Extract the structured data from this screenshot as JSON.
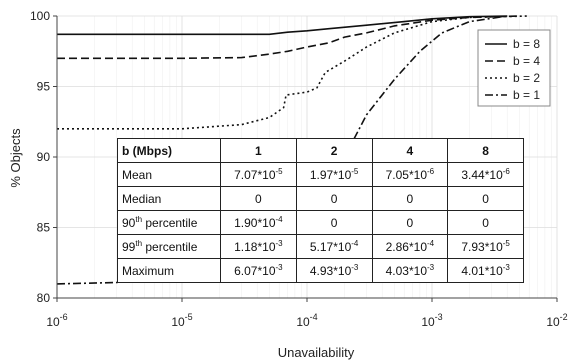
{
  "chart_data": {
    "type": "line",
    "xlabel": "Unavailability",
    "ylabel": "% Objects",
    "xscale": "log",
    "xlim": [
      1e-06,
      0.01
    ],
    "ylim": [
      80,
      100
    ],
    "grid": true,
    "x_ticks": [
      {
        "base": "10",
        "exp": "-6"
      },
      {
        "base": "10",
        "exp": "-5"
      },
      {
        "base": "10",
        "exp": "-4"
      },
      {
        "base": "10",
        "exp": "-3"
      },
      {
        "base": "10",
        "exp": "-2"
      }
    ],
    "y_ticks": [
      "80",
      "85",
      "90",
      "95",
      "100"
    ],
    "legend_position": "top-right",
    "series": [
      {
        "name": "b = 8",
        "dash": "solid",
        "points": [
          [
            1e-06,
            98.7
          ],
          [
            3e-06,
            98.7
          ],
          [
            1e-05,
            98.7
          ],
          [
            5e-05,
            98.7
          ],
          [
            7e-05,
            98.85
          ],
          [
            0.0001,
            98.95
          ],
          [
            0.00015,
            99.1
          ],
          [
            0.0003,
            99.35
          ],
          [
            0.0006,
            99.6
          ],
          [
            0.001,
            99.8
          ],
          [
            0.002,
            99.95
          ],
          [
            0.004,
            100
          ]
        ]
      },
      {
        "name": "b = 4",
        "dash": "dashed",
        "points": [
          [
            1e-06,
            97.0
          ],
          [
            1e-05,
            97.0
          ],
          [
            3e-05,
            97.05
          ],
          [
            5e-05,
            97.3
          ],
          [
            7e-05,
            97.5
          ],
          [
            0.0001,
            97.8
          ],
          [
            0.00015,
            98.1
          ],
          [
            0.0002,
            98.5
          ],
          [
            0.0003,
            98.8
          ],
          [
            0.0005,
            99.3
          ],
          [
            0.001,
            99.7
          ],
          [
            0.002,
            99.9
          ],
          [
            0.005,
            100
          ]
        ]
      },
      {
        "name": "b = 2",
        "dash": "dotted",
        "points": [
          [
            1e-06,
            92.0
          ],
          [
            1e-05,
            92.0
          ],
          [
            3e-05,
            92.3
          ],
          [
            5e-05,
            92.8
          ],
          [
            6.5e-05,
            93.5
          ],
          [
            6.8e-05,
            94.4
          ],
          [
            0.0001,
            94.6
          ],
          [
            0.00012,
            94.9
          ],
          [
            0.00014,
            96.0
          ],
          [
            0.0002,
            96.8
          ],
          [
            0.0003,
            97.8
          ],
          [
            0.0005,
            98.8
          ],
          [
            0.001,
            99.6
          ],
          [
            0.002,
            99.9
          ],
          [
            0.006,
            100
          ]
        ]
      },
      {
        "name": "b = 1",
        "dash": "dashdot",
        "points": [
          [
            1e-06,
            81.0
          ],
          [
            3e-06,
            81.1
          ],
          [
            1e-05,
            81.5
          ],
          [
            3e-05,
            82.0
          ],
          [
            5e-05,
            82.5
          ],
          [
            8e-05,
            83.5
          ],
          [
            0.0001,
            84.8
          ],
          [
            0.00015,
            87.5
          ],
          [
            0.0002,
            90.0
          ],
          [
            0.0003,
            93.0
          ],
          [
            0.0005,
            95.5
          ],
          [
            0.0008,
            97.5
          ],
          [
            0.0012,
            98.8
          ],
          [
            0.002,
            99.6
          ],
          [
            0.004,
            100
          ]
        ]
      }
    ],
    "table": {
      "header": [
        "b (Mbps)",
        "1",
        "2",
        "4",
        "8"
      ],
      "rows": [
        {
          "label": "Mean",
          "label_sup": "",
          "label_suffix": "",
          "cells": [
            {
              "m": "7.07*10",
              "e": "-5"
            },
            {
              "m": "1.97*10",
              "e": "-5"
            },
            {
              "m": "7.05*10",
              "e": "-6"
            },
            {
              "m": "3.44*10",
              "e": "-6"
            }
          ]
        },
        {
          "label": "Median",
          "label_sup": "",
          "label_suffix": "",
          "cells": [
            {
              "m": "0",
              "e": ""
            },
            {
              "m": "0",
              "e": ""
            },
            {
              "m": "0",
              "e": ""
            },
            {
              "m": "0",
              "e": ""
            }
          ]
        },
        {
          "label": "90",
          "label_sup": "th",
          "label_suffix": " percentile",
          "cells": [
            {
              "m": "1.90*10",
              "e": "-4"
            },
            {
              "m": "0",
              "e": ""
            },
            {
              "m": "0",
              "e": ""
            },
            {
              "m": "0",
              "e": ""
            }
          ]
        },
        {
          "label": "99",
          "label_sup": "th",
          "label_suffix": " percentile",
          "cells": [
            {
              "m": "1.18*10",
              "e": "-3"
            },
            {
              "m": "5.17*10",
              "e": "-4"
            },
            {
              "m": "2.86*10",
              "e": "-4"
            },
            {
              "m": "7.93*10",
              "e": "-5"
            }
          ]
        },
        {
          "label": "Maximum",
          "label_sup": "",
          "label_suffix": "",
          "cells": [
            {
              "m": "6.07*10",
              "e": "-3"
            },
            {
              "m": "4.93*10",
              "e": "-3"
            },
            {
              "m": "4.03*10",
              "e": "-3"
            },
            {
              "m": "4.01*10",
              "e": "-3"
            }
          ]
        }
      ]
    }
  }
}
